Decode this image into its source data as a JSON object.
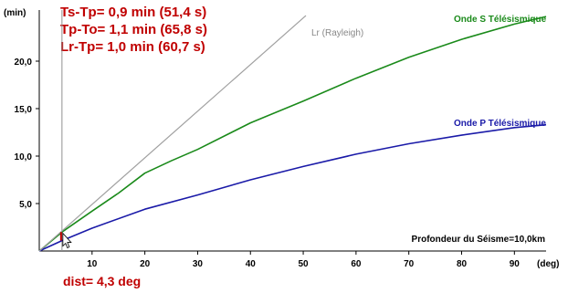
{
  "annotations": {
    "ts_tp": "Ts-Tp= 0,9 min (51,4 s)",
    "tp_to": "Tp-To= 1,1 min (65,8 s)",
    "lr_tp": "Lr-Tp= 1,0 min (60,7 s)",
    "dist": "dist= 4,3 deg",
    "depth": "Profondeur du Séisme=10,0km"
  },
  "colors": {
    "s_wave": "#1a8a1a",
    "p_wave": "#1a1aa8",
    "rayleigh": "#a0a0a0",
    "annotation": "#c00000",
    "marker": "#909090"
  },
  "chart_data": {
    "type": "line",
    "title": "",
    "xlabel": "(deg)",
    "ylabel": "(min)",
    "xlim": [
      0,
      96
    ],
    "ylim": [
      0,
      25
    ],
    "x_ticks": [
      10,
      20,
      30,
      40,
      50,
      60,
      70,
      80,
      90
    ],
    "x_tick_labels": [
      "10",
      "20",
      "30",
      "40",
      "50",
      "60",
      "70",
      "80",
      "90"
    ],
    "y_ticks": [
      5,
      10,
      15,
      20
    ],
    "y_tick_labels": [
      "5,0",
      "10,0",
      "15,0",
      "20,0"
    ],
    "grid": false,
    "marker_distance": 4.3,
    "series": [
      {
        "name": "Onde S Télésismique",
        "x": [
          0,
          4.3,
          10,
          15,
          20,
          25,
          30,
          40,
          50,
          60,
          70,
          80,
          90,
          96
        ],
        "y": [
          0,
          2.0,
          4.2,
          6.1,
          8.2,
          9.5,
          10.7,
          13.5,
          15.8,
          18.2,
          20.4,
          22.3,
          23.9,
          24.7
        ]
      },
      {
        "name": "Onde P Télésismique",
        "x": [
          0,
          4.3,
          10,
          20,
          30,
          40,
          50,
          60,
          70,
          80,
          90,
          96
        ],
        "y": [
          0,
          1.1,
          2.4,
          4.4,
          5.9,
          7.5,
          8.9,
          10.2,
          11.3,
          12.2,
          13.0,
          13.3
        ]
      },
      {
        "name": "Lr (Rayleigh)",
        "x": [
          0,
          50.5
        ],
        "y": [
          0,
          24.8
        ]
      }
    ]
  }
}
